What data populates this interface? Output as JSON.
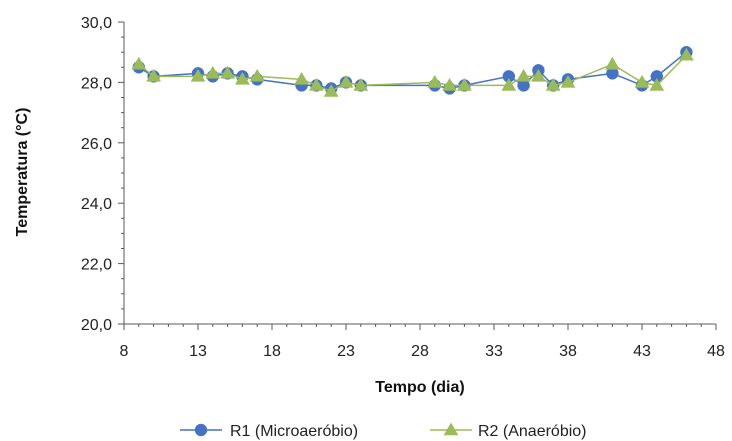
{
  "chart_data": {
    "type": "line",
    "xlabel": "Tempo (dia)",
    "ylabel": "Temperatura (°C)",
    "xlim": [
      8,
      48
    ],
    "ylim": [
      20,
      30
    ],
    "x_ticks": [
      "8",
      "13",
      "18",
      "23",
      "28",
      "33",
      "38",
      "43",
      "48"
    ],
    "y_ticks": [
      "20,0",
      "22,0",
      "24,0",
      "26,0",
      "28,0",
      "30,0"
    ],
    "grid": false,
    "legend_position": "bottom",
    "series": [
      {
        "name": "R1 (Microaeróbio)",
        "marker": "circle",
        "color": "#4472C4",
        "x": [
          9,
          10,
          13,
          14,
          15,
          16,
          17,
          20,
          21,
          22,
          23,
          24,
          29,
          30,
          31,
          34,
          35,
          36,
          37,
          38,
          41,
          43,
          44,
          46
        ],
        "y": [
          28.5,
          28.2,
          28.3,
          28.2,
          28.3,
          28.2,
          28.1,
          27.9,
          27.9,
          27.8,
          28.0,
          27.9,
          27.9,
          27.8,
          27.9,
          28.2,
          27.9,
          28.4,
          27.9,
          28.1,
          28.3,
          27.9,
          28.2,
          29.0
        ]
      },
      {
        "name": "R2 (Anaeróbio)",
        "marker": "triangle",
        "color": "#9BBB59",
        "x": [
          9,
          10,
          13,
          14,
          15,
          16,
          17,
          20,
          21,
          22,
          23,
          24,
          29,
          30,
          31,
          34,
          35,
          36,
          37,
          38,
          41,
          43,
          44,
          46
        ],
        "y": [
          28.6,
          28.2,
          28.2,
          28.3,
          28.3,
          28.1,
          28.2,
          28.1,
          27.9,
          27.7,
          28.0,
          27.9,
          28.0,
          27.9,
          27.9,
          27.9,
          28.2,
          28.2,
          27.9,
          28.0,
          28.6,
          28.0,
          27.9,
          28.9
        ]
      }
    ]
  }
}
